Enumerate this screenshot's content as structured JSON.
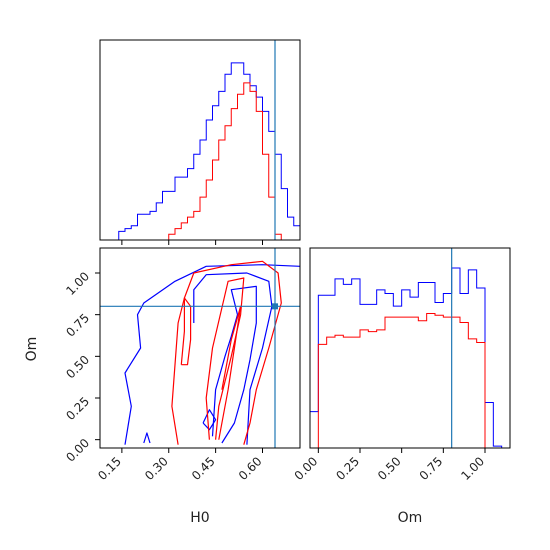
{
  "chart_data": {
    "type": "corner",
    "parameters": [
      "H0",
      "Om"
    ],
    "colors": {
      "series_a": "#0000ff",
      "series_b": "#ff0000",
      "truth": "#1f77b4"
    },
    "truth": {
      "H0": 0.64,
      "Om": 0.8
    },
    "panels": [
      {
        "id": "hist_h0",
        "type": "step-histogram",
        "xlim": [
          0.08,
          0.72
        ],
        "bin_edges": [
          0.08,
          0.1,
          0.12,
          0.14,
          0.16,
          0.18,
          0.2,
          0.22,
          0.24,
          0.26,
          0.28,
          0.3,
          0.32,
          0.34,
          0.36,
          0.38,
          0.4,
          0.42,
          0.44,
          0.46,
          0.48,
          0.5,
          0.52,
          0.54,
          0.56,
          0.58,
          0.6,
          0.62,
          0.64,
          0.66,
          0.68,
          0.7,
          0.72
        ],
        "series": [
          {
            "color": "series_a",
            "counts": [
              0,
              0,
              0,
              3,
              4,
              5,
              9,
              9,
              10,
              13,
              17,
              17,
              22,
              22,
              25,
              30,
              35,
              42,
              47,
              52,
              58,
              62,
              62,
              58,
              54,
              50,
              45,
              38,
              30,
              18,
              8,
              5
            ]
          },
          {
            "color": "series_b",
            "counts": [
              0,
              0,
              0,
              0,
              0,
              0,
              0,
              0,
              0,
              0,
              0,
              2,
              4,
              6,
              8,
              10,
              15,
              21,
              28,
              35,
              40,
              46,
              51,
              55,
              52,
              45,
              30,
              15,
              2,
              0,
              0,
              0
            ]
          }
        ],
        "ylim": [
          0,
          70
        ]
      },
      {
        "id": "hist_om",
        "type": "step-histogram",
        "xlim": [
          -0.05,
          1.15
        ],
        "xticks": [
          "0.00",
          "0.25",
          "0.50",
          "0.75",
          "1.00"
        ],
        "xtick_values": [
          0,
          0.25,
          0.5,
          0.75,
          1.0
        ],
        "xlabel": "Om",
        "bin_edges": [
          -0.05,
          0.0,
          0.05,
          0.1,
          0.15,
          0.2,
          0.25,
          0.3,
          0.35,
          0.4,
          0.45,
          0.5,
          0.55,
          0.6,
          0.65,
          0.7,
          0.75,
          0.8,
          0.85,
          0.9,
          0.95,
          1.0,
          1.05,
          1.1,
          1.15
        ],
        "series": [
          {
            "color": "series_a",
            "counts": [
              20,
              84,
              84,
              93,
              90,
              93,
              79,
              79,
              87,
              85,
              78,
              87,
              83,
              91,
              91,
              80,
              85,
              99,
              85,
              98,
              88,
              25,
              1,
              0
            ]
          },
          {
            "color": "series_b",
            "counts": [
              0,
              57,
              61,
              62,
              61,
              61,
              65,
              64,
              65,
              72,
              72,
              72,
              72,
              70,
              74,
              73,
              72,
              72,
              69,
              60,
              58,
              0,
              0,
              0
            ]
          }
        ],
        "ylim": [
          0,
          110
        ]
      },
      {
        "id": "contour_h0_om",
        "type": "contour",
        "xlim": [
          0.08,
          0.72
        ],
        "ylim": [
          -0.05,
          1.15
        ],
        "xticks": [
          "0.15",
          "0.30",
          "0.45",
          "0.60"
        ],
        "xtick_values": [
          0.15,
          0.3,
          0.45,
          0.6
        ],
        "yticks": [
          "0.00",
          "0.25",
          "0.50",
          "0.75",
          "1.00"
        ],
        "ytick_values": [
          0,
          0.25,
          0.5,
          0.75,
          1.0
        ],
        "xlabel": "H0",
        "ylabel": "Om",
        "contours": [
          {
            "color": "series_a",
            "points": [
              [
                0.16,
                -0.03
              ],
              [
                0.18,
                0.2
              ],
              [
                0.16,
                0.4
              ],
              [
                0.21,
                0.55
              ],
              [
                0.2,
                0.75
              ],
              [
                0.22,
                0.82
              ],
              [
                0.32,
                0.95
              ],
              [
                0.42,
                1.04
              ],
              [
                0.6,
                1.05
              ],
              [
                0.72,
                1.04
              ]
            ]
          },
          {
            "color": "series_a",
            "points": [
              [
                0.55,
                -0.03
              ],
              [
                0.56,
                0.3
              ],
              [
                0.6,
                0.55
              ],
              [
                0.63,
                0.8
              ],
              [
                0.62,
                0.95
              ],
              [
                0.55,
                1.0
              ],
              [
                0.42,
                0.99
              ],
              [
                0.38,
                0.9
              ],
              [
                0.38,
                0.7
              ]
            ]
          },
          {
            "color": "series_a",
            "points": [
              [
                0.44,
                0.02
              ],
              [
                0.45,
                0.3
              ],
              [
                0.48,
                0.5
              ],
              [
                0.5,
                0.62
              ],
              [
                0.52,
                0.75
              ],
              [
                0.5,
                0.9
              ],
              [
                0.58,
                0.92
              ],
              [
                0.58,
                0.7
              ],
              [
                0.56,
                0.48
              ],
              [
                0.54,
                0.3
              ],
              [
                0.51,
                0.1
              ],
              [
                0.47,
                -0.02
              ]
            ]
          },
          {
            "color": "series_a",
            "points": [
              [
                0.41,
                0.1
              ],
              [
                0.43,
                0.18
              ],
              [
                0.45,
                0.12
              ],
              [
                0.43,
                0.06
              ],
              [
                0.41,
                0.1
              ]
            ]
          },
          {
            "color": "series_a",
            "points": [
              [
                0.22,
                -0.02
              ],
              [
                0.23,
                0.04
              ],
              [
                0.24,
                -0.02
              ]
            ]
          },
          {
            "color": "series_b",
            "points": [
              [
                0.33,
                -0.03
              ],
              [
                0.31,
                0.2
              ],
              [
                0.32,
                0.45
              ],
              [
                0.33,
                0.7
              ],
              [
                0.35,
                0.85
              ],
              [
                0.38,
                1.0
              ],
              [
                0.5,
                1.05
              ],
              [
                0.6,
                1.07
              ],
              [
                0.65,
                1.0
              ],
              [
                0.66,
                0.82
              ],
              [
                0.62,
                0.55
              ],
              [
                0.58,
                0.3
              ],
              [
                0.56,
                0.1
              ],
              [
                0.54,
                -0.03
              ]
            ]
          },
          {
            "color": "series_b",
            "points": [
              [
                0.45,
                0.0
              ],
              [
                0.46,
                0.2
              ],
              [
                0.5,
                0.5
              ],
              [
                0.53,
                0.75
              ],
              [
                0.54,
                0.97
              ],
              [
                0.49,
                0.95
              ],
              [
                0.44,
                0.55
              ],
              [
                0.42,
                0.25
              ],
              [
                0.43,
                0.0
              ]
            ]
          },
          {
            "color": "series_b",
            "points": [
              [
                0.46,
                0.0
              ],
              [
                0.49,
                0.3
              ],
              [
                0.51,
                0.55
              ],
              [
                0.53,
                0.8
              ],
              [
                0.5,
                0.6
              ],
              [
                0.47,
                0.3
              ]
            ]
          },
          {
            "color": "series_b",
            "points": [
              [
                0.34,
                0.45
              ],
              [
                0.35,
                0.65
              ],
              [
                0.35,
                0.85
              ],
              [
                0.37,
                0.8
              ],
              [
                0.37,
                0.6
              ],
              [
                0.36,
                0.45
              ],
              [
                0.34,
                0.45
              ]
            ]
          }
        ]
      }
    ]
  }
}
